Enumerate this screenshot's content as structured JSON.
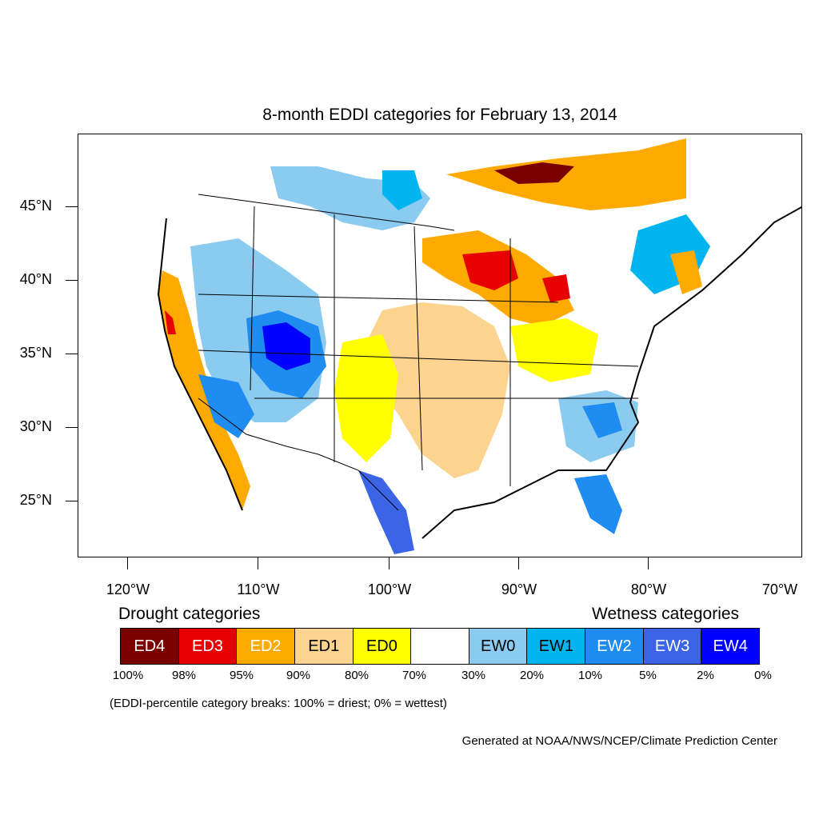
{
  "title": "8-month EDDI categories for February 13, 2014",
  "map": {
    "y_axis_labels": [
      "45°N",
      "40°N",
      "35°N",
      "30°N",
      "25°N"
    ],
    "x_axis_labels": [
      "120°W",
      "110°W",
      "100°W",
      "90°W",
      "80°W",
      "70°W"
    ]
  },
  "legend": {
    "drought_heading": "Drought categories",
    "wetness_heading": "Wetness categories",
    "categories": [
      {
        "label": "ED4",
        "color": "#7a0000",
        "text_color": "#ffffff"
      },
      {
        "label": "ED3",
        "color": "#e60000",
        "text_color": "#ffffff"
      },
      {
        "label": "ED2",
        "color": "#ffaa00",
        "text_color": "#ffffff"
      },
      {
        "label": "ED1",
        "color": "#fcd38f",
        "text_color": "#000000"
      },
      {
        "label": "ED0",
        "color": "#ffff00",
        "text_color": "#000000"
      },
      {
        "label": "",
        "color": "#ffffff",
        "text_color": "#000000"
      },
      {
        "label": "EW0",
        "color": "#8ccbf0",
        "text_color": "#000000"
      },
      {
        "label": "EW1",
        "color": "#00b4f0",
        "text_color": "#000000"
      },
      {
        "label": "EW2",
        "color": "#1e8cf0",
        "text_color": "#ffffff"
      },
      {
        "label": "EW3",
        "color": "#3c64e6",
        "text_color": "#ffffff"
      },
      {
        "label": "EW4",
        "color": "#0000ff",
        "text_color": "#ffffff"
      }
    ],
    "percent_breaks": [
      "100%",
      "98%",
      "95%",
      "90%",
      "80%",
      "70%",
      "30%",
      "20%",
      "10%",
      "5%",
      "2%",
      "0%"
    ]
  },
  "note": "(EDDI-percentile category breaks: 100% = driest; 0% = wettest)",
  "credit": "Generated at NOAA/NWS/NCEP/Climate Prediction Center"
}
